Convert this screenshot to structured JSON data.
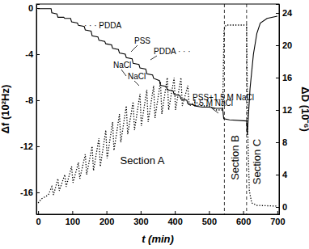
{
  "chart_data": {
    "type": "line",
    "x_label": "t (min)",
    "y_label": "Δf (10²Hz)",
    "y2_label": "ΔD (10⁻⁶)",
    "xlim": [
      -5,
      705
    ],
    "xticks": [
      0,
      100,
      200,
      300,
      400,
      500,
      600,
      700
    ],
    "ylim": [
      -17.9,
      0.35
    ],
    "yticks": [
      -16,
      -12,
      -8,
      -4,
      0
    ],
    "y2lim": [
      -0.9,
      25.1
    ],
    "y2ticks": [
      0,
      4,
      8,
      12,
      16,
      20,
      24
    ],
    "vlines": [
      545,
      610
    ],
    "annotations": [
      "· · · PDDA",
      "PSS",
      "PDDA · · ·",
      "NaCl",
      "NaCl",
      "1.5 M NaCl",
      "PSS+1.5 M NaCl",
      "Section A",
      "Section B",
      "Section C"
    ],
    "series": [
      {
        "color": "#000000",
        "line_style": "solid",
        "x": [
          0,
          38,
          40,
          55,
          58,
          75,
          78,
          95,
          98,
          115,
          118,
          135,
          138,
          155,
          158,
          175,
          178,
          195,
          198,
          215,
          218,
          235,
          238,
          255,
          258,
          275,
          278,
          295,
          298,
          315,
          318,
          335,
          338,
          355,
          358,
          375,
          378,
          395,
          398,
          415,
          418,
          435,
          438,
          455,
          458,
          480,
          500,
          520,
          540,
          543,
          560,
          610,
          612,
          620,
          630,
          640,
          650,
          670,
          700
        ],
        "values": [
          -0.05,
          -0.05,
          -0.4,
          -0.5,
          -0.8,
          -0.8,
          -0.9,
          -0.9,
          -1.2,
          -1.3,
          -1.5,
          -1.6,
          -1.9,
          -2.0,
          -2.4,
          -2.5,
          -2.8,
          -2.9,
          -3.1,
          -3.2,
          -3.5,
          -3.6,
          -3.9,
          -4.0,
          -4.3,
          -4.4,
          -4.8,
          -4.9,
          -5.2,
          -5.3,
          -5.7,
          -5.8,
          -6.1,
          -6.3,
          -6.7,
          -6.8,
          -7.1,
          -7.2,
          -7.5,
          -7.6,
          -7.9,
          -8.0,
          -8.3,
          -8.4,
          -8.5,
          -8.6,
          -8.6,
          -8.7,
          -8.7,
          -9.6,
          -9.7,
          -9.8,
          -11,
          -7,
          -4,
          -2.2,
          -1.3,
          -0.9,
          -0.7
        ]
      },
      {
        "color": "#000000",
        "line_style": "dotted",
        "axis": "y2",
        "x": [
          0,
          10,
          30,
          40,
          45,
          58,
          62,
          78,
          82,
          98,
          102,
          118,
          122,
          138,
          142,
          158,
          162,
          178,
          182,
          198,
          202,
          218,
          222,
          238,
          242,
          258,
          262,
          278,
          282,
          298,
          302,
          318,
          322,
          338,
          342,
          358,
          362,
          378,
          382,
          398,
          402,
          418,
          422,
          438,
          442,
          460,
          480,
          500,
          520,
          540,
          544,
          550,
          610,
          613,
          618,
          625,
          640,
          700
        ],
        "values": [
          0.5,
          1,
          1.5,
          2.5,
          1.5,
          3.5,
          2,
          4,
          2.5,
          5,
          3,
          5.5,
          3.5,
          6.5,
          4,
          7.5,
          4.5,
          8.5,
          5,
          9.5,
          6,
          10.5,
          7,
          11.5,
          8,
          12.5,
          9,
          13,
          9.5,
          14,
          10,
          14.5,
          10.5,
          15,
          11,
          15.5,
          11.5,
          16,
          12,
          16,
          12,
          16,
          12.5,
          15,
          12.5,
          13,
          12.5,
          12.5,
          12,
          12,
          22,
          22.5,
          22.5,
          10,
          2,
          0.5,
          0.2,
          0.1
        ]
      }
    ]
  }
}
